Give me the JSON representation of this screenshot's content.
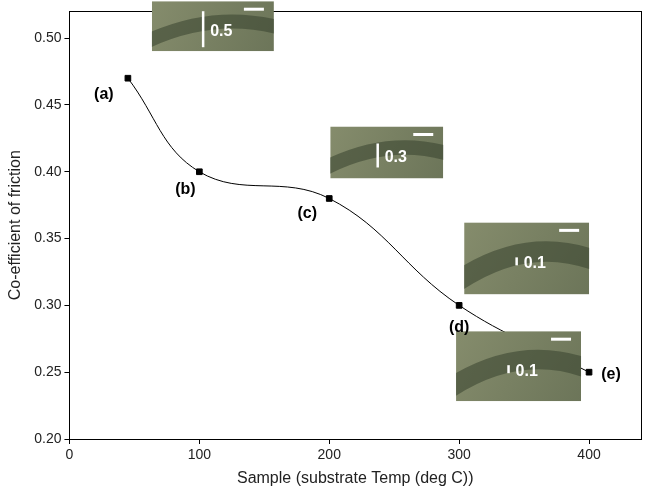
{
  "chart_data": {
    "type": "line",
    "x_label": "Sample (substrate Temp (deg C))",
    "y_label": "Co-efficient of friction",
    "x": [
      45,
      100,
      200,
      300,
      400
    ],
    "values": [
      0.47,
      0.4,
      0.38,
      0.3,
      0.25
    ],
    "point_labels": [
      "(a)",
      "(b)",
      "(c)",
      "(d)",
      "(e)"
    ],
    "inset_labels": [
      "0.5",
      null,
      "0.3",
      "0.1",
      "0.1"
    ],
    "color": "#000000",
    "marker": "square",
    "line_style": "solid",
    "xlim": [
      0,
      440
    ],
    "xticks": [
      0,
      100,
      200,
      300,
      400
    ],
    "ylim": [
      0.2,
      0.52
    ],
    "yticks": [
      {
        "value": 0.2,
        "label": "0.20"
      },
      0.25,
      {
        "value": 0.3,
        "label": "0.30"
      },
      0.35,
      {
        "value": 0.4,
        "label": "0.40"
      },
      0.45,
      {
        "value": 0.5,
        "label": "0.50"
      }
    ],
    "grid": false
  }
}
